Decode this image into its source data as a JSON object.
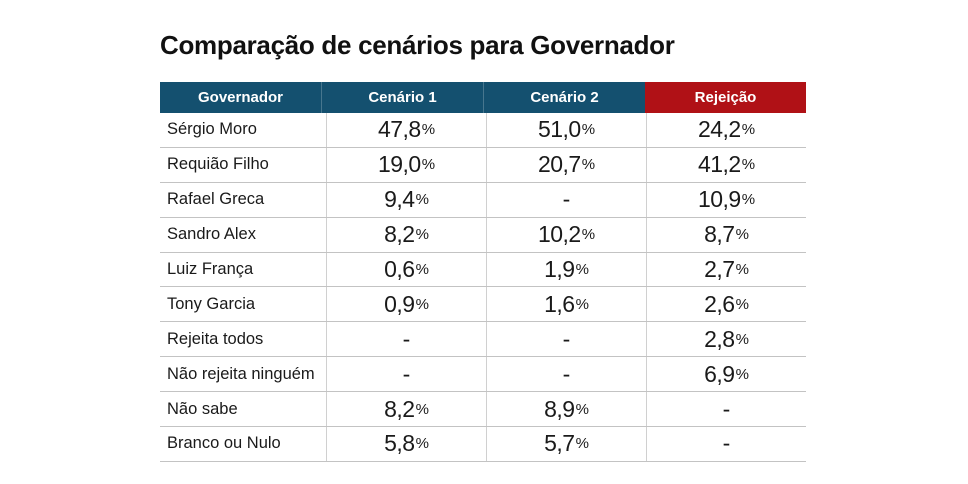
{
  "page": {
    "title": "Comparação de cenários para Governador"
  },
  "chart_data": {
    "type": "table",
    "title": "Comparação de cenários para Governador",
    "columns": [
      "Governador",
      "Cenário 1",
      "Cenário 2",
      "Rejeição"
    ],
    "rows": [
      [
        "Sérgio Moro",
        "47,8%",
        "51,0%",
        "24,2%"
      ],
      [
        "Requião Filho",
        "19,0%",
        "20,7%",
        "41,2%"
      ],
      [
        "Rafael Greca",
        "9,4%",
        "-",
        "10,9%"
      ],
      [
        "Sandro Alex",
        "8,2%",
        "10,2%",
        "8,7%"
      ],
      [
        "Luiz França",
        "0,6%",
        "1,9%",
        "2,7%"
      ],
      [
        "Tony Garcia",
        "0,9%",
        "1,6%",
        "2,6%"
      ],
      [
        "Rejeita todos",
        "-",
        "-",
        "2,8%"
      ],
      [
        "Não rejeita ninguém",
        "-",
        "-",
        "6,9%"
      ],
      [
        "Não sabe",
        "8,2%",
        "8,9%",
        "-"
      ],
      [
        "Branco ou Nulo",
        "5,8%",
        "5,7%",
        "-"
      ]
    ]
  },
  "colors": {
    "header_fill": [
      "#14506F",
      "#14506F",
      "#14506F",
      "#B01116"
    ],
    "header_blue": "#14506F",
    "header_red": "#B01116",
    "header_text": "#FFFFFF",
    "row_line": "#C3C3C3",
    "col_line": "#D0D0D0",
    "body_text": "#1A1A1A",
    "title_text": "#111111",
    "background": "#FFFFFF"
  }
}
